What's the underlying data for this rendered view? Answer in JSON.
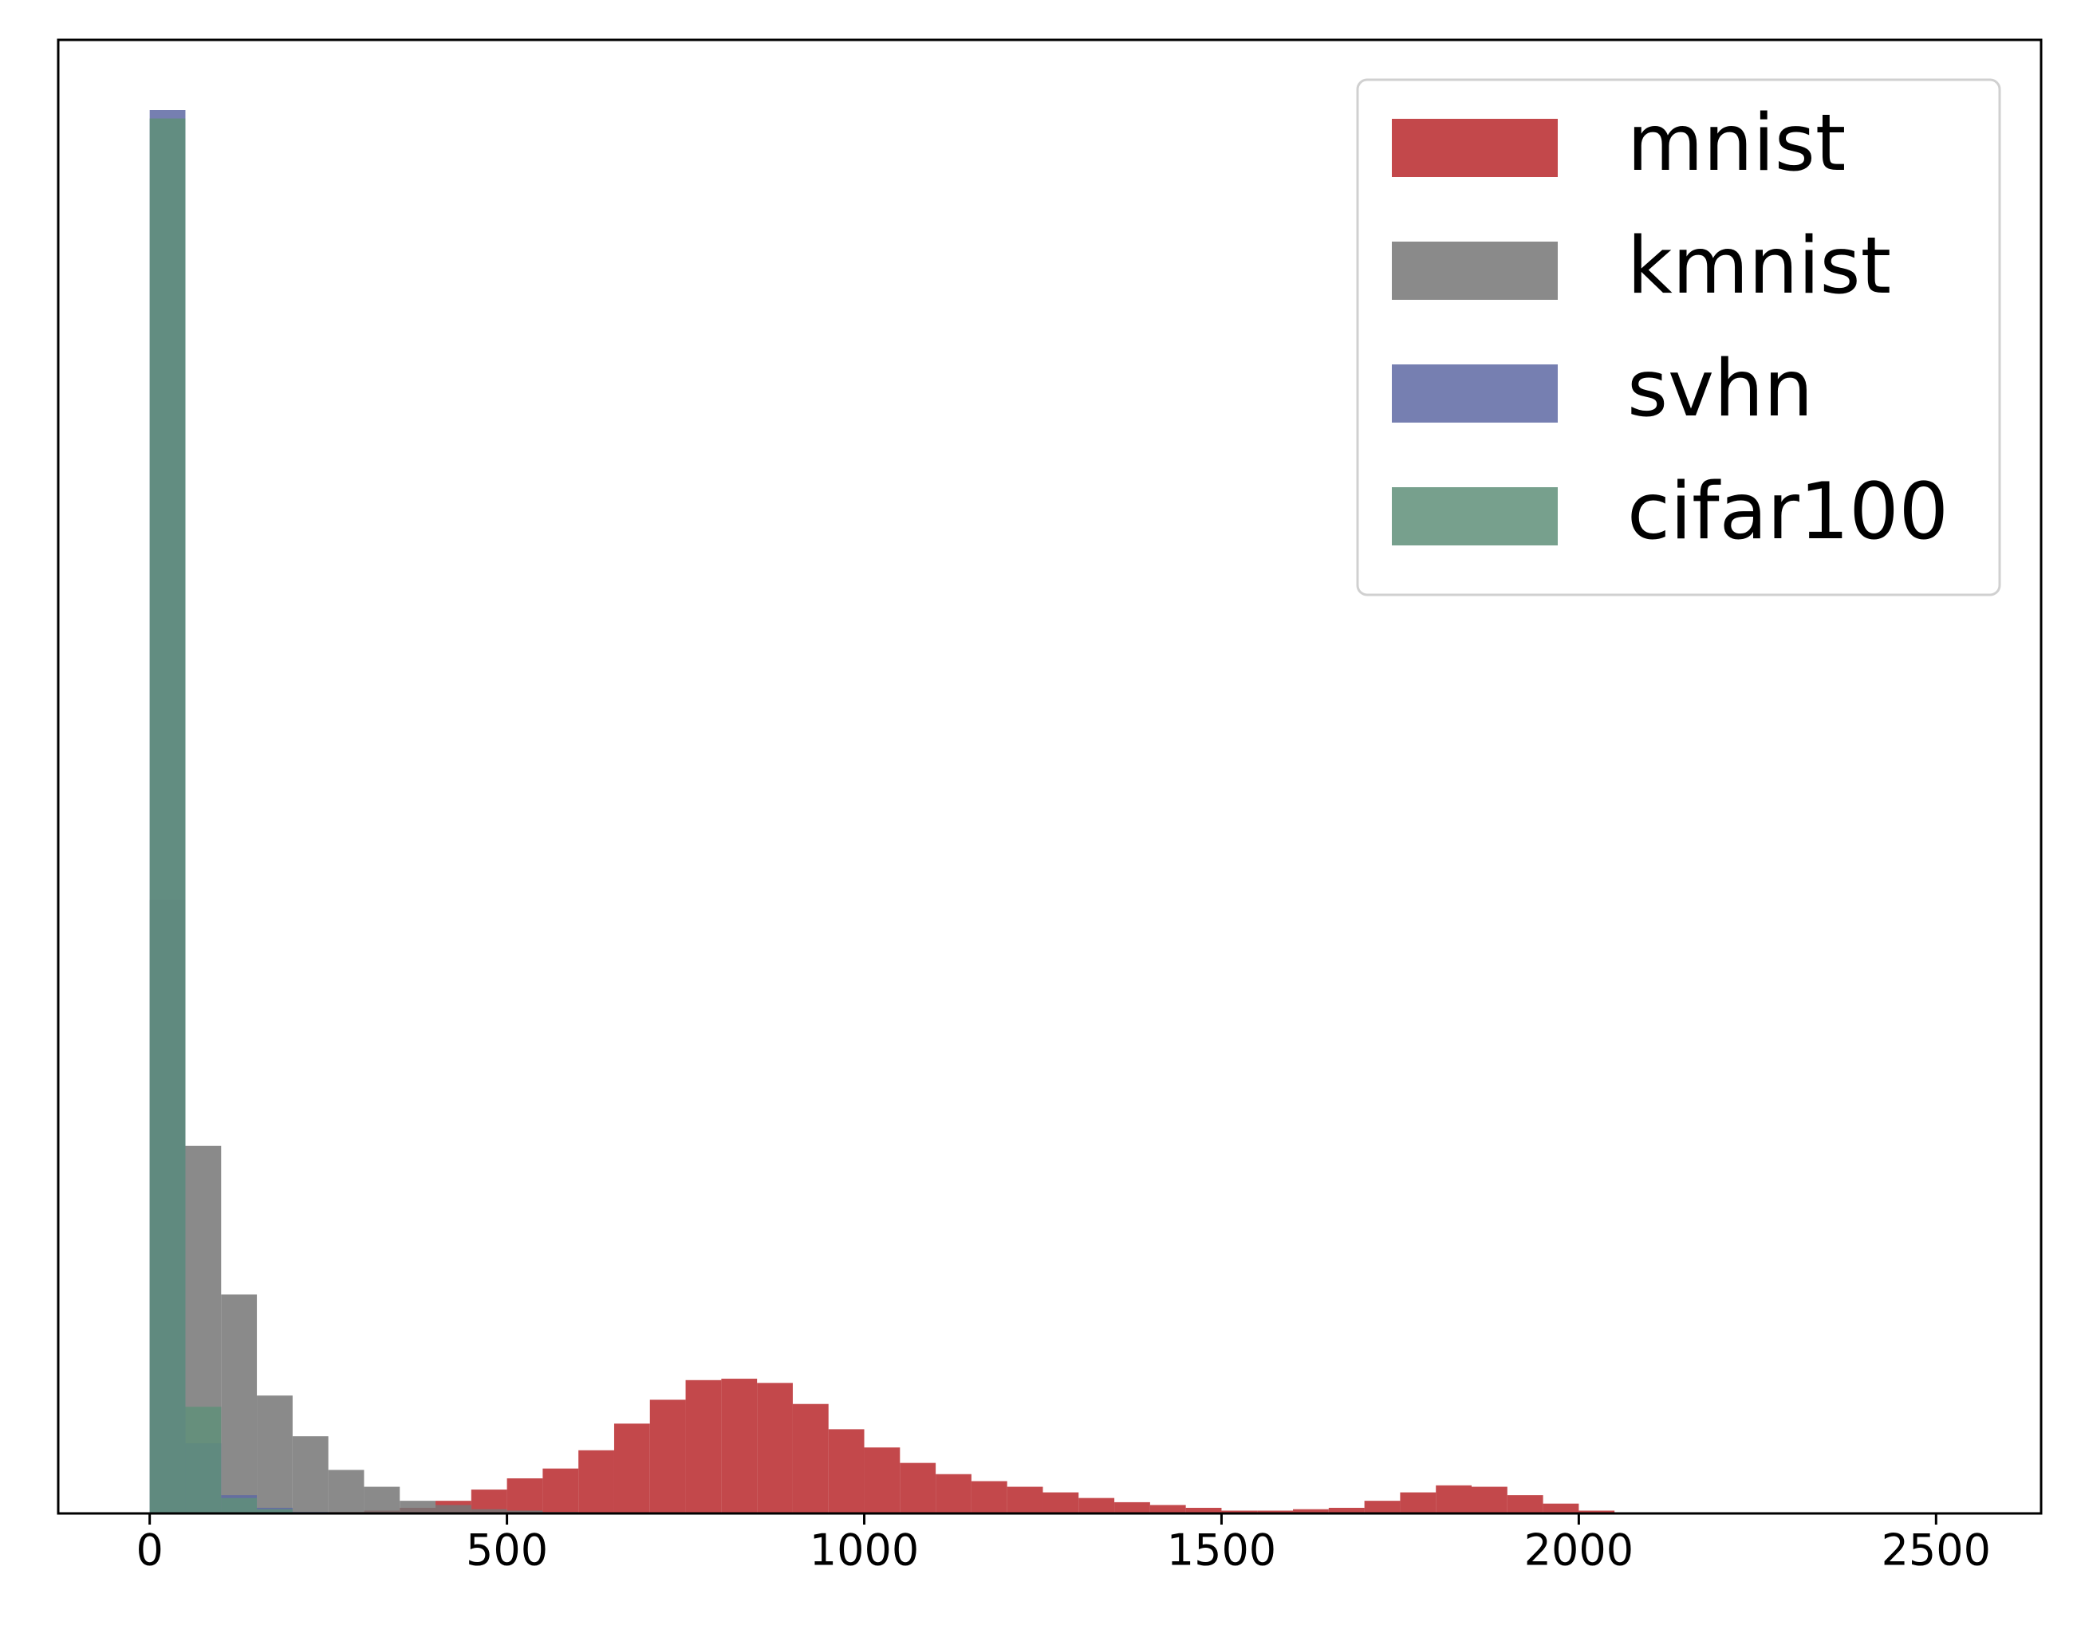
{
  "chart_data": {
    "type": "histogram",
    "bins": [
      0,
      50,
      100,
      150,
      200,
      250,
      300,
      350,
      400,
      450,
      500,
      550,
      600,
      650,
      700,
      750,
      800,
      850,
      900,
      950,
      1000,
      1050,
      1100,
      1150,
      1200,
      1250,
      1300,
      1350,
      1400,
      1450,
      1500,
      1550,
      1600,
      1650,
      1700,
      1750,
      1800,
      1850,
      1900,
      1950,
      2000,
      2050,
      2100
    ],
    "series": [
      {
        "name": "mnist",
        "color": "#b8282b",
        "values": [
          0,
          0,
          0,
          0,
          0,
          0.1,
          0.2,
          0.4,
          0.9,
          1.7,
          2.5,
          3.2,
          4.5,
          6.4,
          8.1,
          9.5,
          9.6,
          9.3,
          7.8,
          6.0,
          4.7,
          3.6,
          2.8,
          2.3,
          1.9,
          1.5,
          1.1,
          0.8,
          0.6,
          0.4,
          0.2,
          0.2,
          0.3,
          0.4,
          0.9,
          1.5,
          2.0,
          1.9,
          1.3,
          0.7,
          0.2,
          0
        ]
      },
      {
        "name": "kmnist",
        "color": "#767676",
        "values": [
          43.7,
          26.2,
          15.6,
          8.4,
          5.5,
          3.1,
          1.9,
          0.9,
          0.6,
          0.3,
          0.2,
          0.1,
          0,
          0,
          0,
          0,
          0,
          0,
          0,
          0,
          0,
          0,
          0,
          0,
          0,
          0,
          0,
          0,
          0,
          0,
          0,
          0,
          0,
          0,
          0,
          0,
          0,
          0,
          0,
          0,
          0,
          0
        ]
      },
      {
        "name": "svhn",
        "color": "#5e69a3",
        "values": [
          100,
          5,
          1.3,
          0.4,
          0.1,
          0,
          0,
          0,
          0,
          0,
          0,
          0,
          0,
          0,
          0,
          0,
          0,
          0,
          0,
          0,
          0,
          0,
          0,
          0,
          0,
          0,
          0,
          0,
          0,
          0,
          0,
          0,
          0,
          0,
          0,
          0,
          0,
          0,
          0,
          0,
          0,
          0
        ]
      },
      {
        "name": "cifar100",
        "color": "#5f8f79",
        "values": [
          99.4,
          7.6,
          1.1,
          0.3,
          0,
          0,
          0,
          0,
          0,
          0,
          0,
          0,
          0,
          0,
          0,
          0,
          0,
          0,
          0,
          0,
          0,
          0,
          0,
          0,
          0,
          0,
          0,
          0,
          0,
          0,
          0,
          0,
          0,
          0,
          0,
          0,
          0,
          0,
          0,
          0,
          0,
          0
        ]
      }
    ],
    "xlim": [
      -128,
      2647
    ],
    "xticks": [
      0,
      500,
      1000,
      1500,
      2000,
      2500
    ],
    "ylim": [
      0,
      105
    ],
    "legend": "upper right"
  }
}
